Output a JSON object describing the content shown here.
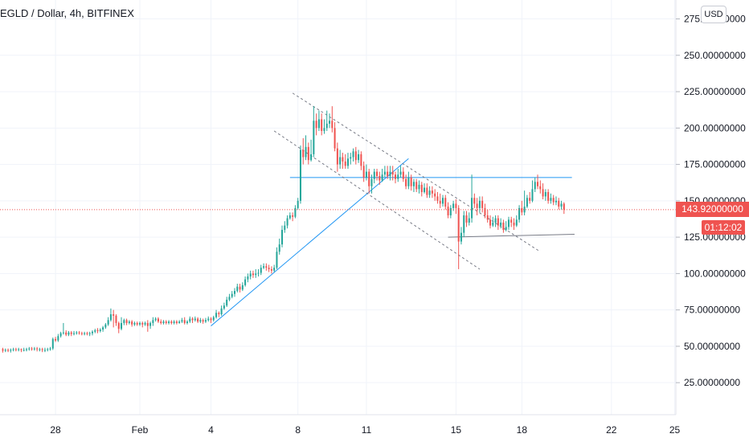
{
  "header": {
    "title": "EGLD / Dollar, 4h, BITFINEX",
    "currency_button": "USD"
  },
  "last_price_label": "143.92000000",
  "countdown_label": "01:12:02",
  "colors": {
    "up": "#26a69a",
    "down": "#ef5350",
    "trendline": "#2196f3",
    "channel": "#787b86",
    "grid": "#f0f3fa",
    "axis_text": "#131722"
  },
  "chart_data": {
    "type": "candlestick",
    "y_ticks": [
      25,
      50,
      75,
      100,
      125,
      150,
      175,
      200,
      225,
      250,
      275
    ],
    "y_tick_labels": [
      "25.00000000",
      "50.00000000",
      "75.00000000",
      "100.00000000",
      "125.00000000",
      "150.00000000",
      "175.00000000",
      "200.00000000",
      "225.00000000",
      "250.00000000",
      "275.00000000"
    ],
    "ylim": [
      3,
      288
    ],
    "x_ticks": [
      {
        "label": "28",
        "index": 20
      },
      {
        "label": "Feb",
        "index": 52
      },
      {
        "label": "4",
        "index": 79
      },
      {
        "label": "8",
        "index": 112
      },
      {
        "label": "11",
        "index": 138
      },
      {
        "label": "15",
        "index": 172
      },
      {
        "label": "18",
        "index": 197
      },
      {
        "label": "22",
        "index": 231
      },
      {
        "label": "25",
        "index": 255
      }
    ],
    "x_index_range": [
      0,
      255
    ],
    "last_price": 143.92,
    "candles": [
      [
        48,
        47,
        49,
        45.7
      ],
      [
        47,
        47.5,
        48.5,
        46
      ],
      [
        47.5,
        47,
        48.5,
        46
      ],
      [
        47,
        47.5,
        48.5,
        45.7
      ],
      [
        47.5,
        48,
        49,
        46.5
      ],
      [
        48,
        47.5,
        49,
        46.5
      ],
      [
        47.5,
        48,
        49,
        46.5
      ],
      [
        48,
        47.5,
        48.5,
        46
      ],
      [
        47.5,
        47.5,
        49,
        46.5
      ],
      [
        47.5,
        48,
        49,
        46.5
      ],
      [
        48,
        48.5,
        49.5,
        47
      ],
      [
        48.5,
        48,
        49.5,
        47
      ],
      [
        48,
        48.5,
        49.5,
        47
      ],
      [
        48.5,
        48,
        49.5,
        46.5
      ],
      [
        48,
        48,
        49,
        46.5
      ],
      [
        48,
        47.5,
        49,
        46
      ],
      [
        47.5,
        47.5,
        49,
        46
      ],
      [
        47.5,
        48,
        49,
        46.5
      ],
      [
        48,
        48.5,
        49.5,
        47
      ],
      [
        48.5,
        55,
        56,
        47.5
      ],
      [
        55,
        54,
        56.5,
        53
      ],
      [
        54,
        57,
        58.5,
        53
      ],
      [
        57,
        59,
        60,
        56
      ],
      [
        59,
        59.5,
        66,
        58
      ],
      [
        59.5,
        58,
        61,
        57
      ],
      [
        58,
        59.5,
        60.5,
        57
      ],
      [
        59.5,
        58.5,
        60.5,
        57
      ],
      [
        58.5,
        59,
        60.5,
        57.5
      ],
      [
        59,
        59.5,
        60.5,
        58
      ],
      [
        59.5,
        59,
        60.5,
        58
      ],
      [
        59,
        58.5,
        60,
        57.5
      ],
      [
        58.5,
        59,
        60,
        57.5
      ],
      [
        59,
        58.5,
        60,
        57.5
      ],
      [
        58.5,
        59,
        60,
        57
      ],
      [
        59,
        60,
        61,
        57.5
      ],
      [
        60,
        61,
        62,
        59
      ],
      [
        61,
        60.5,
        62.5,
        59
      ],
      [
        60.5,
        61.5,
        62.5,
        59.5
      ],
      [
        61.5,
        63,
        64,
        60
      ],
      [
        63,
        65,
        66,
        62
      ],
      [
        65,
        68,
        70,
        64
      ],
      [
        68,
        72,
        76,
        67
      ],
      [
        72,
        71,
        75,
        63
      ],
      [
        71,
        66,
        72,
        64
      ],
      [
        66,
        62,
        67,
        59
      ],
      [
        62,
        66,
        70,
        61
      ],
      [
        66,
        68,
        69,
        64.5
      ],
      [
        68,
        66,
        69,
        64.5
      ],
      [
        66,
        67,
        68,
        65
      ],
      [
        67,
        65,
        68,
        63.5
      ],
      [
        65,
        66,
        67,
        64
      ],
      [
        66,
        65,
        67,
        64
      ],
      [
        65,
        66,
        67,
        64
      ],
      [
        66,
        65,
        67,
        63
      ],
      [
        65,
        66,
        67,
        64
      ],
      [
        66,
        64,
        68,
        60
      ],
      [
        64,
        66,
        67,
        62
      ],
      [
        66,
        68,
        70,
        64
      ],
      [
        68,
        69,
        70,
        67
      ],
      [
        69,
        67,
        70,
        66
      ],
      [
        67,
        66,
        68.5,
        65
      ],
      [
        66,
        67,
        68,
        65
      ],
      [
        67,
        66,
        68,
        65
      ],
      [
        66,
        67,
        68,
        65
      ],
      [
        67,
        66,
        68,
        65
      ],
      [
        66,
        67,
        68,
        65
      ],
      [
        67,
        66,
        68,
        65
      ],
      [
        66,
        67,
        68,
        65.5
      ],
      [
        67,
        68,
        69.5,
        66
      ],
      [
        68,
        66,
        70,
        65
      ],
      [
        66,
        67,
        68,
        65
      ],
      [
        67,
        69,
        70.5,
        66
      ],
      [
        69,
        68,
        70,
        66
      ],
      [
        68,
        69,
        70.5,
        67
      ],
      [
        69,
        67,
        70,
        66
      ],
      [
        67,
        68,
        69.5,
        66
      ],
      [
        68,
        67,
        69,
        65.5
      ],
      [
        67,
        68,
        69.5,
        66
      ],
      [
        68,
        69,
        70.5,
        67
      ],
      [
        69,
        68,
        70,
        66
      ],
      [
        68,
        70,
        71,
        67
      ],
      [
        70,
        73,
        75,
        69
      ],
      [
        73,
        72,
        74,
        70
      ],
      [
        72,
        76,
        78,
        71
      ],
      [
        76,
        78,
        80,
        75
      ],
      [
        78,
        82,
        84,
        77
      ],
      [
        82,
        84,
        86,
        81
      ],
      [
        84,
        86,
        88,
        83
      ],
      [
        86,
        88,
        90,
        84
      ],
      [
        88,
        91,
        93,
        87
      ],
      [
        91,
        89,
        93,
        87
      ],
      [
        89,
        92,
        94,
        88
      ],
      [
        92,
        96,
        98,
        91
      ],
      [
        96,
        98,
        100,
        94
      ],
      [
        98,
        100,
        102,
        96
      ],
      [
        100,
        99,
        102,
        97
      ],
      [
        99,
        100,
        103,
        97
      ],
      [
        100,
        100.5,
        103,
        98
      ],
      [
        100.5,
        104,
        106,
        99
      ],
      [
        104,
        105,
        107,
        103
      ],
      [
        105,
        104,
        107,
        102
      ],
      [
        104,
        103,
        106,
        101
      ],
      [
        103,
        102,
        105,
        100
      ],
      [
        102,
        104,
        106,
        101
      ],
      [
        104,
        115,
        118,
        103
      ],
      [
        115,
        120,
        124,
        113
      ],
      [
        120,
        130,
        133,
        118
      ],
      [
        130,
        133,
        136,
        128
      ],
      [
        133,
        138,
        140,
        131
      ],
      [
        138,
        140,
        142,
        137
      ],
      [
        140,
        139,
        142,
        136
      ],
      [
        139,
        145,
        147,
        138
      ],
      [
        145,
        150,
        152,
        144
      ],
      [
        150,
        185,
        188,
        148
      ],
      [
        185,
        180,
        193,
        175
      ],
      [
        180,
        187,
        195,
        178
      ],
      [
        187,
        178,
        190,
        175
      ],
      [
        178,
        182,
        192,
        177
      ],
      [
        182,
        205,
        215,
        180
      ],
      [
        205,
        200,
        210,
        195
      ],
      [
        200,
        206,
        212,
        198
      ],
      [
        206,
        198,
        210,
        195
      ],
      [
        198,
        200,
        206,
        196
      ],
      [
        200,
        203,
        212,
        198
      ],
      [
        203,
        205,
        210,
        200
      ],
      [
        205,
        200,
        215,
        197
      ],
      [
        200,
        186,
        204,
        184
      ],
      [
        186,
        175,
        190,
        170
      ],
      [
        175,
        180,
        185,
        172
      ],
      [
        180,
        177,
        183,
        172
      ],
      [
        177,
        174,
        182,
        172
      ],
      [
        174,
        179,
        183,
        172
      ],
      [
        179,
        180,
        183,
        175
      ],
      [
        180,
        184,
        186,
        177
      ],
      [
        184,
        178,
        187,
        175
      ],
      [
        178,
        182,
        185,
        176
      ],
      [
        182,
        174,
        184,
        171
      ],
      [
        174,
        166,
        177,
        163
      ],
      [
        166,
        170,
        175,
        164
      ],
      [
        170,
        160,
        172,
        155
      ],
      [
        160,
        165,
        168,
        155
      ],
      [
        165,
        170,
        172,
        162
      ],
      [
        170,
        167,
        172,
        164
      ],
      [
        167,
        164,
        170,
        161
      ],
      [
        164,
        168,
        172,
        163
      ],
      [
        168,
        170,
        174,
        166
      ],
      [
        170,
        167,
        174,
        165
      ],
      [
        167,
        170,
        174,
        164
      ],
      [
        170,
        168,
        174,
        164
      ],
      [
        168,
        165,
        170,
        162
      ],
      [
        165,
        168,
        172,
        163
      ],
      [
        168,
        170,
        174,
        166
      ],
      [
        170,
        165,
        173,
        163
      ],
      [
        165,
        160,
        168,
        158
      ],
      [
        160,
        166,
        170,
        158
      ],
      [
        166,
        160,
        168,
        157
      ],
      [
        160,
        163,
        165,
        156
      ],
      [
        163,
        158,
        165,
        156
      ],
      [
        158,
        161,
        164,
        155
      ],
      [
        161,
        156,
        163,
        153
      ],
      [
        156,
        159,
        162,
        155
      ],
      [
        159,
        154,
        162,
        152
      ],
      [
        154,
        157,
        160,
        152
      ],
      [
        157,
        155,
        160,
        152
      ],
      [
        155,
        153,
        158,
        150
      ],
      [
        153,
        150,
        156,
        148
      ],
      [
        150,
        148,
        155,
        145
      ],
      [
        148,
        152,
        154,
        146
      ],
      [
        152,
        146,
        154,
        144
      ],
      [
        146,
        140,
        149,
        138
      ],
      [
        140,
        145,
        147,
        138
      ],
      [
        145,
        148,
        150,
        143
      ],
      [
        148,
        145,
        151,
        141
      ],
      [
        145,
        122,
        147,
        103
      ],
      [
        122,
        128,
        132,
        120
      ],
      [
        128,
        140,
        143,
        125
      ],
      [
        140,
        135,
        143,
        132
      ],
      [
        135,
        138,
        142,
        133
      ],
      [
        138,
        152,
        168,
        135
      ],
      [
        152,
        148,
        155,
        145
      ],
      [
        148,
        145,
        152,
        140
      ],
      [
        145,
        150,
        153,
        142
      ],
      [
        150,
        145,
        153,
        142
      ],
      [
        145,
        140,
        148,
        138
      ],
      [
        140,
        137,
        144,
        135
      ],
      [
        137,
        133,
        140,
        131
      ],
      [
        133,
        135,
        139,
        132
      ],
      [
        135,
        138,
        140,
        132
      ],
      [
        138,
        133,
        140,
        130
      ],
      [
        133,
        135,
        138,
        131
      ],
      [
        135,
        130,
        137,
        128
      ],
      [
        130,
        132,
        136,
        129
      ],
      [
        132,
        137,
        139,
        130
      ],
      [
        137,
        135,
        139,
        132
      ],
      [
        135,
        133,
        138,
        130
      ],
      [
        133,
        137,
        140,
        132
      ],
      [
        137,
        145,
        147,
        135
      ],
      [
        145,
        142,
        150,
        140
      ],
      [
        142,
        146,
        157,
        140
      ],
      [
        146,
        152,
        154,
        145
      ],
      [
        152,
        150,
        156,
        148
      ],
      [
        150,
        158,
        164,
        149
      ],
      [
        158,
        163,
        166,
        156
      ],
      [
        163,
        160,
        168,
        158
      ],
      [
        160,
        158,
        164,
        155
      ],
      [
        158,
        153,
        162,
        151
      ],
      [
        153,
        156,
        158,
        150
      ],
      [
        156,
        150,
        158,
        148
      ],
      [
        150,
        152,
        155,
        148
      ],
      [
        152,
        149,
        154,
        147
      ],
      [
        149,
        150,
        153,
        147
      ],
      [
        150,
        146,
        152,
        144
      ],
      [
        146,
        148,
        150,
        144
      ],
      [
        148,
        143.92,
        149,
        141
      ]
    ],
    "drawings": {
      "ascending_trendline": {
        "from": [
          79,
          64
        ],
        "to": [
          154,
          179
        ]
      },
      "resistance_line": {
        "from": [
          109,
          166
        ],
        "to": [
          216,
          166
        ]
      },
      "support_line": {
        "from": [
          169,
          125
        ],
        "to": [
          217,
          127
        ]
      },
      "channel_upper": {
        "from": [
          110,
          224
        ],
        "to": [
          204,
          115
        ]
      },
      "channel_lower": {
        "from": [
          103,
          198
        ],
        "to": [
          181,
          103
        ]
      }
    }
  }
}
